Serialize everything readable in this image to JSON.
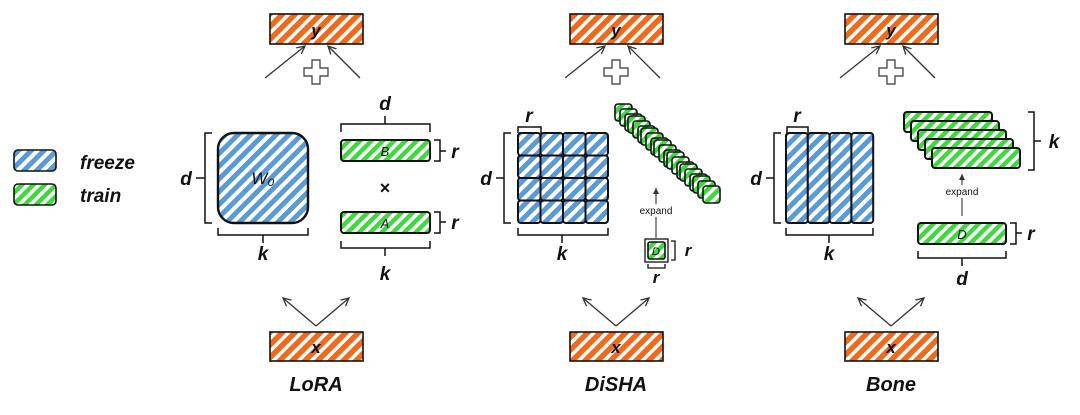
{
  "legend": {
    "freeze_label": "freeze",
    "train_label": "train"
  },
  "colors": {
    "freeze": "#5b9bd5",
    "train": "#3fd93f",
    "io": "#f06a1c",
    "stroke": "#111111"
  },
  "lora": {
    "title": "LoRA",
    "y_label": "y",
    "x_label": "x",
    "w_label": "W₀",
    "b_label": "B",
    "a_label": "A",
    "dim_d": "d",
    "dim_k": "k",
    "dim_r": "r",
    "times": "×"
  },
  "disha": {
    "title": "DiSHA",
    "y_label": "y",
    "x_label": "x",
    "d_label": "D",
    "expand_label": "expand",
    "dim_d": "d",
    "dim_k": "k",
    "dim_r": "r"
  },
  "bone": {
    "title": "Bone",
    "y_label": "y",
    "x_label": "x",
    "d_label": "D",
    "expand_label": "expand",
    "dim_d": "d",
    "dim_k": "k",
    "dim_r": "r"
  }
}
